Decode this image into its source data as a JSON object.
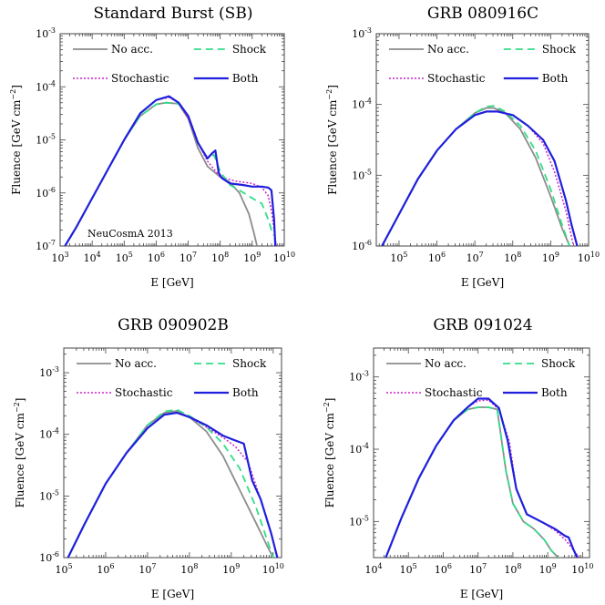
{
  "figure": {
    "ylabel": "Fluence [GeV cm",
    "ylabel_sup": "−2",
    "ylabel_tail": "]",
    "xlabel": "E [GeV]"
  },
  "colors": {
    "noacc": "#8c8c8c",
    "shock": "#33dd88",
    "stochastic": "#cc22cc",
    "both": "#1f1fdd"
  },
  "chart_data": [
    {
      "type": "line",
      "title": "Standard Burst (SB)",
      "xlabel": "E [GeV]",
      "ylabel": "Fluence [GeV cm^-2]",
      "xscale": "log",
      "yscale": "log",
      "xlim_exp": [
        3,
        10
      ],
      "ylim_exp": [
        -7,
        -3
      ],
      "xticks_exp": [
        3,
        4,
        5,
        6,
        7,
        8,
        9,
        10
      ],
      "yticks_exp": [
        -7,
        -6,
        -5,
        -4,
        -3
      ],
      "legend": [
        "No acc.",
        "Shock",
        "Stochastic",
        "Both"
      ],
      "annotation": "NeuCosmA 2013",
      "series": [
        {
          "name": "No acc.",
          "log_x": [
            3.15,
            3.5,
            4,
            4.5,
            5,
            5.5,
            6,
            6.3,
            6.7,
            7,
            7.3,
            7.6,
            8,
            8.3,
            8.6,
            8.9,
            9.05,
            9.15
          ],
          "log_y": [
            -7,
            -6.65,
            -6.1,
            -5.55,
            -5.0,
            -4.55,
            -4.33,
            -4.3,
            -4.32,
            -4.6,
            -5.15,
            -5.5,
            -5.7,
            -5.8,
            -6.0,
            -6.4,
            -6.75,
            -7
          ]
        },
        {
          "name": "Shock",
          "log_x": [
            3.15,
            3.5,
            4,
            4.5,
            5,
            5.5,
            6,
            6.3,
            6.7,
            7,
            7.3,
            7.6,
            7.8,
            8,
            8.3,
            8.6,
            9,
            9.3,
            9.5,
            9.65
          ],
          "log_y": [
            -7,
            -6.65,
            -6.1,
            -5.55,
            -5.0,
            -4.55,
            -4.33,
            -4.3,
            -4.32,
            -4.55,
            -5.05,
            -5.35,
            -5.28,
            -5.6,
            -5.85,
            -5.95,
            -6.1,
            -6.2,
            -6.5,
            -6.8
          ]
        },
        {
          "name": "Stochastic",
          "log_x": [
            3.15,
            3.5,
            4,
            4.5,
            5,
            5.5,
            6,
            6.4,
            6.7,
            7,
            7.3,
            7.6,
            8,
            8.5,
            9,
            9.3,
            9.5,
            9.62,
            9.75
          ],
          "log_y": [
            -7,
            -6.65,
            -6.1,
            -5.55,
            -5.0,
            -4.5,
            -4.25,
            -4.2,
            -4.3,
            -4.6,
            -5.05,
            -5.4,
            -5.7,
            -5.78,
            -5.82,
            -5.9,
            -6.05,
            -6.4,
            -7
          ]
        },
        {
          "name": "Both",
          "log_x": [
            3.15,
            3.5,
            4,
            4.5,
            5,
            5.5,
            6,
            6.4,
            6.7,
            7,
            7.3,
            7.6,
            7.75,
            7.85,
            7.95,
            8.05,
            8.3,
            8.7,
            9,
            9.3,
            9.5,
            9.6,
            9.68,
            9.72
          ],
          "log_y": [
            -7,
            -6.65,
            -6.1,
            -5.55,
            -5.0,
            -4.5,
            -4.25,
            -4.18,
            -4.3,
            -4.55,
            -5.05,
            -5.35,
            -5.25,
            -5.2,
            -5.62,
            -5.72,
            -5.82,
            -5.85,
            -5.88,
            -5.88,
            -5.9,
            -5.95,
            -6.5,
            -7
          ]
        }
      ]
    },
    {
      "type": "line",
      "title": "GRB 080916C",
      "xlabel": "E [GeV]",
      "ylabel": "Fluence [GeV cm^-2]",
      "xscale": "log",
      "yscale": "log",
      "xlim_exp": [
        4.4,
        10
      ],
      "ylim_exp": [
        -6,
        -3
      ],
      "xticks_exp": [
        5,
        6,
        7,
        8,
        9,
        10
      ],
      "yticks_exp": [
        -6,
        -5,
        -4,
        -3
      ],
      "legend": [
        "No acc.",
        "Shock",
        "Stochastic",
        "Both"
      ],
      "series": [
        {
          "name": "No acc.",
          "log_x": [
            4.55,
            5,
            5.5,
            6,
            6.5,
            7,
            7.3,
            7.5,
            7.8,
            8.2,
            8.6,
            9,
            9.3,
            9.5
          ],
          "log_y": [
            -6,
            -5.55,
            -5.05,
            -4.65,
            -4.35,
            -4.12,
            -4.05,
            -4.05,
            -4.12,
            -4.35,
            -4.75,
            -5.3,
            -5.75,
            -6
          ]
        },
        {
          "name": "Shock",
          "log_x": [
            4.55,
            5,
            5.5,
            6,
            6.5,
            7,
            7.3,
            7.5,
            7.8,
            8.2,
            8.6,
            9,
            9.3,
            9.5
          ],
          "log_y": [
            -6,
            -5.55,
            -5.05,
            -4.65,
            -4.35,
            -4.12,
            -4.03,
            -4.02,
            -4.1,
            -4.3,
            -4.65,
            -5.2,
            -5.7,
            -6
          ]
        },
        {
          "name": "Stochastic",
          "log_x": [
            4.55,
            5,
            5.5,
            6,
            6.5,
            7,
            7.3,
            7.6,
            8,
            8.4,
            8.8,
            9.1,
            9.4,
            9.6
          ],
          "log_y": [
            -6,
            -5.55,
            -5.05,
            -4.65,
            -4.35,
            -4.15,
            -4.1,
            -4.1,
            -4.15,
            -4.3,
            -4.55,
            -4.95,
            -5.5,
            -6
          ]
        },
        {
          "name": "Both",
          "log_x": [
            4.55,
            5,
            5.5,
            6,
            6.5,
            7,
            7.3,
            7.6,
            8,
            8.4,
            8.8,
            9.1,
            9.4,
            9.55,
            9.7
          ],
          "log_y": [
            -6,
            -5.55,
            -5.05,
            -4.65,
            -4.35,
            -4.15,
            -4.1,
            -4.1,
            -4.15,
            -4.3,
            -4.5,
            -4.8,
            -5.35,
            -5.7,
            -6
          ]
        }
      ]
    },
    {
      "type": "line",
      "title": "GRB 090902B",
      "xlabel": "E [GeV]",
      "ylabel": "Fluence [GeV cm^-2]",
      "xscale": "log",
      "yscale": "log",
      "xlim_exp": [
        5,
        10.2
      ],
      "ylim_exp": [
        -6,
        -2.6
      ],
      "xticks_exp": [
        5,
        6,
        7,
        8,
        9,
        10
      ],
      "yticks_exp": [
        -6,
        -5,
        -4,
        -3
      ],
      "legend": [
        "No acc.",
        "Shock",
        "Stochastic",
        "Both"
      ],
      "series": [
        {
          "name": "No acc.",
          "log_x": [
            5.1,
            5.5,
            6,
            6.5,
            7,
            7.4,
            7.7,
            8,
            8.4,
            8.8,
            9.2,
            9.6,
            9.85,
            10
          ],
          "log_y": [
            -6,
            -5.45,
            -4.8,
            -4.3,
            -3.85,
            -3.65,
            -3.62,
            -3.72,
            -3.95,
            -4.35,
            -4.9,
            -5.45,
            -5.8,
            -6
          ]
        },
        {
          "name": "Shock",
          "log_x": [
            5.1,
            5.5,
            6,
            6.5,
            7,
            7.4,
            7.7,
            8,
            8.4,
            8.8,
            9.2,
            9.6,
            9.85,
            10
          ],
          "log_y": [
            -6,
            -5.45,
            -4.8,
            -4.3,
            -3.85,
            -3.63,
            -3.6,
            -3.7,
            -3.88,
            -4.15,
            -4.55,
            -5.2,
            -5.7,
            -6
          ]
        },
        {
          "name": "Stochastic",
          "log_x": [
            5.1,
            5.5,
            6,
            6.5,
            7,
            7.4,
            7.7,
            8,
            8.4,
            8.8,
            9.1,
            9.4,
            9.7,
            9.95,
            10.1
          ],
          "log_y": [
            -6,
            -5.45,
            -4.8,
            -4.3,
            -3.9,
            -3.68,
            -3.65,
            -3.72,
            -3.88,
            -4.05,
            -4.2,
            -4.45,
            -5.05,
            -5.6,
            -6
          ]
        },
        {
          "name": "Both",
          "log_x": [
            5.1,
            5.5,
            6,
            6.5,
            7,
            7.4,
            7.7,
            8,
            8.4,
            8.8,
            9.1,
            9.3,
            9.4,
            9.5,
            9.7,
            9.95,
            10.1
          ],
          "log_y": [
            -6,
            -5.45,
            -4.8,
            -4.3,
            -3.9,
            -3.68,
            -3.65,
            -3.72,
            -3.85,
            -4.02,
            -4.1,
            -4.15,
            -4.45,
            -4.75,
            -5.05,
            -5.6,
            -6
          ]
        }
      ]
    },
    {
      "type": "line",
      "title": "GRB 091024",
      "xlabel": "E [GeV]",
      "ylabel": "Fluence [GeV cm^-2]",
      "xscale": "log",
      "yscale": "log",
      "xlim_exp": [
        4,
        10.2
      ],
      "ylim_exp": [
        -5.5,
        -2.6
      ],
      "xticks_exp": [
        4,
        5,
        6,
        7,
        8,
        9,
        10
      ],
      "yticks_exp": [
        -5,
        -4,
        -3
      ],
      "legend": [
        "No acc.",
        "Shock",
        "Stochastic",
        "Both"
      ],
      "series": [
        {
          "name": "No acc.",
          "log_x": [
            4.35,
            4.8,
            5.3,
            5.8,
            6.3,
            6.7,
            7,
            7.3,
            7.55,
            7.8,
            8,
            8.3,
            8.6,
            8.9,
            9.1,
            9.3
          ],
          "log_y": [
            -5.5,
            -4.95,
            -4.4,
            -3.95,
            -3.6,
            -3.45,
            -3.42,
            -3.42,
            -3.45,
            -4.3,
            -4.75,
            -5.0,
            -5.1,
            -5.25,
            -5.4,
            -5.5
          ]
        },
        {
          "name": "Shock",
          "log_x": [
            4.35,
            4.8,
            5.3,
            5.8,
            6.3,
            6.7,
            7,
            7.3,
            7.55,
            7.8,
            8,
            8.3,
            8.6,
            8.9,
            9.1,
            9.3
          ],
          "log_y": [
            -5.5,
            -4.95,
            -4.4,
            -3.95,
            -3.6,
            -3.45,
            -3.42,
            -3.42,
            -3.45,
            -4.3,
            -4.75,
            -5.0,
            -5.1,
            -5.25,
            -5.4,
            -5.5
          ]
        },
        {
          "name": "Stochastic",
          "log_x": [
            4.35,
            4.8,
            5.3,
            5.8,
            6.3,
            6.7,
            7,
            7.3,
            7.6,
            7.9,
            8.1,
            8.4,
            8.8,
            9.2,
            9.5,
            9.75,
            9.9
          ],
          "log_y": [
            -5.5,
            -4.95,
            -4.4,
            -3.95,
            -3.6,
            -3.42,
            -3.33,
            -3.32,
            -3.45,
            -3.9,
            -4.55,
            -4.9,
            -5.0,
            -5.12,
            -5.25,
            -5.4,
            -5.5
          ]
        },
        {
          "name": "Both",
          "log_x": [
            4.35,
            4.8,
            5.3,
            5.8,
            6.3,
            6.7,
            7,
            7.3,
            7.6,
            7.85,
            7.95,
            8.1,
            8.4,
            8.8,
            9.2,
            9.5,
            9.6,
            9.75,
            9.85
          ],
          "log_y": [
            -5.5,
            -4.95,
            -4.4,
            -3.95,
            -3.6,
            -3.42,
            -3.3,
            -3.3,
            -3.43,
            -3.88,
            -4.15,
            -4.55,
            -4.9,
            -5.0,
            -5.1,
            -5.2,
            -5.22,
            -5.4,
            -5.5
          ]
        }
      ]
    }
  ]
}
